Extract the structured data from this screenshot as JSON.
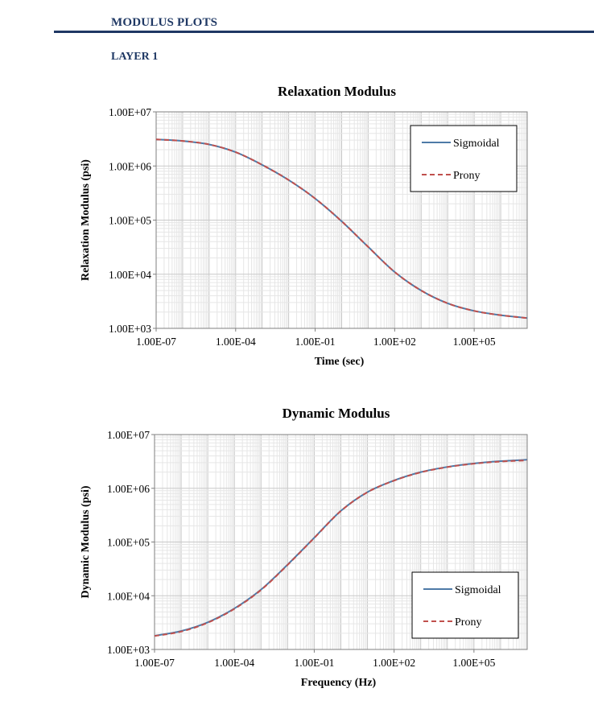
{
  "header": {
    "section_title": "MODULUS PLOTS",
    "layer_title": "LAYER 1"
  },
  "colors": {
    "sigmoidal": "#4e7aa7",
    "prony": "#c0504d",
    "heading": "#1f3864"
  },
  "chart_data": [
    {
      "type": "line",
      "title": "Relaxation Modulus",
      "xlabel": "Time (sec)",
      "ylabel": "Relaxation Modulus (psi)",
      "x_scale": "log",
      "y_scale": "log",
      "xlim": [
        1e-07,
        10000000.0
      ],
      "ylim": [
        1000,
        10000000
      ],
      "x_tick_labels": [
        "1.00E-07",
        "1.00E-04",
        "1.00E-01",
        "1.00E+02",
        "1.00E+05"
      ],
      "y_tick_labels": [
        "1.00E+03",
        "1.00E+04",
        "1.00E+05",
        "1.00E+06",
        "1.00E+07"
      ],
      "legend": [
        "Sigmoidal",
        "Prony"
      ],
      "legend_position": "top-right",
      "grid": true,
      "series": [
        {
          "name": "Sigmoidal",
          "style": "solid",
          "x": [
            1e-07,
            1e-06,
            1e-05,
            0.0001,
            0.001,
            0.01,
            0.1,
            1.0,
            10.0,
            100.0,
            1000.0,
            10000.0,
            100000.0,
            1000000.0,
            10000000.0
          ],
          "y": [
            3100000,
            2900000,
            2500000,
            1800000,
            1050000,
            550000,
            250000,
            95000,
            32000,
            11000,
            5000,
            2900,
            2100,
            1750,
            1550
          ]
        },
        {
          "name": "Prony",
          "style": "dashed",
          "x": [
            1e-07,
            1e-06,
            1e-05,
            0.0001,
            0.001,
            0.01,
            0.1,
            1.0,
            10.0,
            100.0,
            1000.0,
            10000.0,
            100000.0,
            1000000.0,
            10000000.0
          ],
          "y": [
            3100000,
            2900000,
            2500000,
            1800000,
            1050000,
            550000,
            250000,
            95000,
            32000,
            11000,
            5000,
            2900,
            2100,
            1750,
            1550
          ]
        }
      ]
    },
    {
      "type": "line",
      "title": "Dynamic Modulus",
      "xlabel": "Frequency (Hz)",
      "ylabel": "Dynamic Modulus (psi)",
      "x_scale": "log",
      "y_scale": "log",
      "xlim": [
        1e-07,
        10000000.0
      ],
      "ylim": [
        1000,
        10000000
      ],
      "x_tick_labels": [
        "1.00E-07",
        "1.00E-04",
        "1.00E-01",
        "1.00E+02",
        "1.00E+05"
      ],
      "y_tick_labels": [
        "1.00E+03",
        "1.00E+04",
        "1.00E+05",
        "1.00E+06",
        "1.00E+07"
      ],
      "legend": [
        "Sigmoidal",
        "Prony"
      ],
      "legend_position": "bottom-right",
      "grid": true,
      "series": [
        {
          "name": "Sigmoidal",
          "style": "solid",
          "x": [
            1e-07,
            1e-06,
            1e-05,
            0.0001,
            0.001,
            0.01,
            0.1,
            1.0,
            10.0,
            100.0,
            1000.0,
            10000.0,
            100000.0,
            1000000.0,
            10000000.0
          ],
          "y": [
            1800,
            2200,
            3200,
            5800,
            13000,
            38000,
            120000,
            380000,
            850000,
            1400000,
            2000000,
            2500000,
            2900000,
            3200000,
            3400000
          ]
        },
        {
          "name": "Prony",
          "style": "dashed",
          "x": [
            1e-07,
            1e-06,
            1e-05,
            0.0001,
            0.001,
            0.01,
            0.1,
            1.0,
            10.0,
            100.0,
            1000.0,
            10000.0,
            100000.0,
            1000000.0,
            10000000.0
          ],
          "y": [
            1780,
            2150,
            3150,
            5700,
            12800,
            37500,
            119000,
            378000,
            845000,
            1390000,
            1980000,
            2480000,
            2870000,
            3150000,
            3300000
          ]
        }
      ]
    }
  ]
}
